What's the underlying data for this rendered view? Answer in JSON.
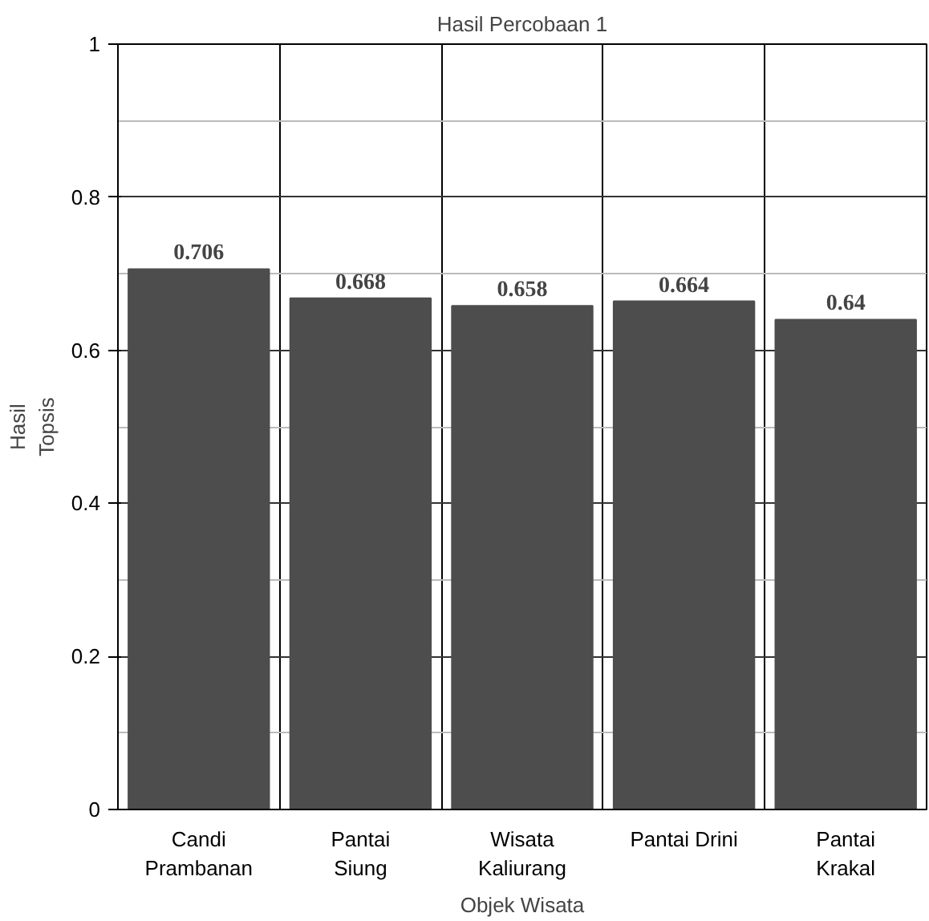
{
  "chart_data": {
    "type": "bar",
    "title": "Hasil Percobaan 1",
    "xlabel": "Objek Wisata",
    "ylabel": "Hasil\nTopsis",
    "categories": [
      "Candi\nPrambanan",
      "Pantai\nSiung",
      "Wisata\nKaliurang",
      "Pantai Drini",
      "Pantai\nKrakal"
    ],
    "values": [
      0.706,
      0.668,
      0.658,
      0.664,
      0.64
    ],
    "color": "#4d4d4d",
    "ylim": [
      0,
      1
    ],
    "yticks": [
      0,
      0.2,
      0.4,
      0.6,
      0.8,
      1
    ],
    "grid": true,
    "data_labels": true
  }
}
